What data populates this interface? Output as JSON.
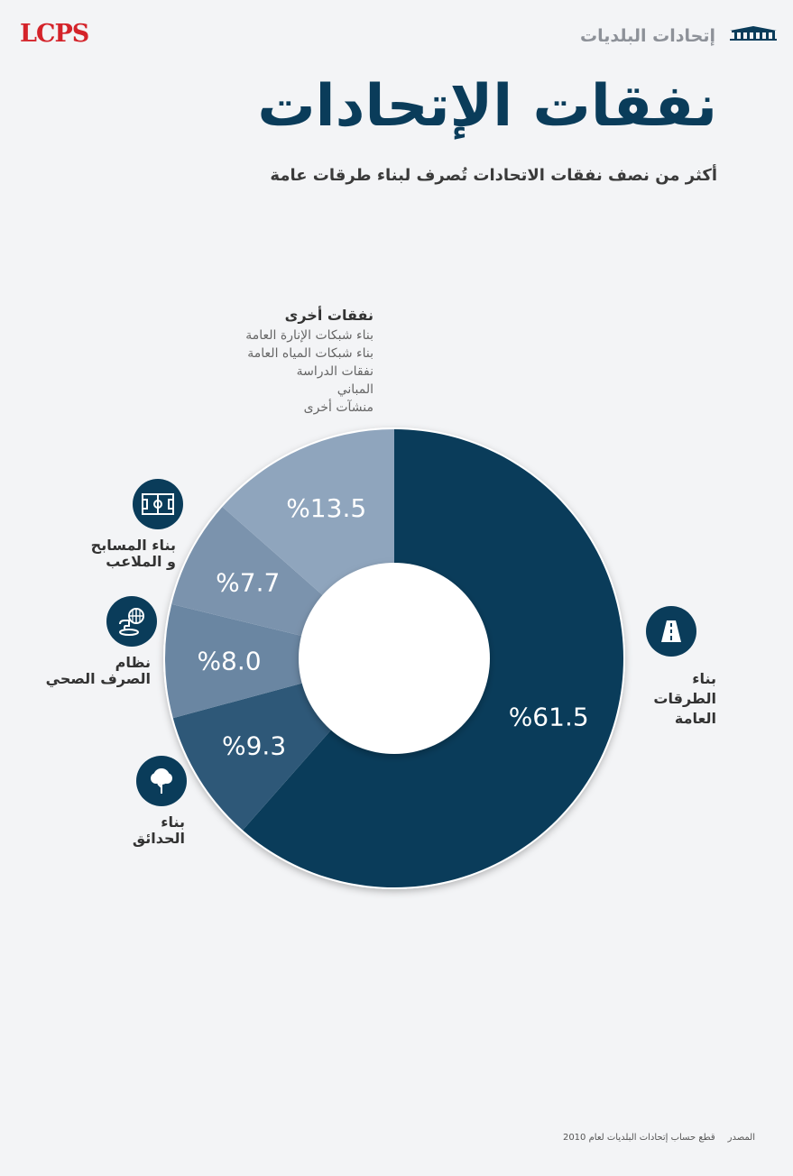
{
  "header": {
    "logo": "LCPS",
    "section": "إتحادات البلديات",
    "title": "نفقات الإتحادات",
    "subtitle": "أكثر من نصف نفقات الاتحادات تُصرف لبناء طرقات عامة"
  },
  "chart_data": {
    "type": "pie",
    "categories": [
      "بناء الطرقات العامة",
      "بناء الحدائق",
      "نظام الصرف الصحي",
      "بناء المسابح و الملاعب",
      "نفقات أخرى"
    ],
    "values": [
      61.5,
      9.3,
      8.0,
      7.7,
      13.5
    ],
    "value_labels": [
      "%61.5",
      "%9.3",
      "%8.0",
      "%7.7",
      "%13.5"
    ],
    "colors": [
      "#0a3c5a",
      "#2e5878",
      "#6a86a2",
      "#7b93ad",
      "#8fa5bd"
    ],
    "donut": true,
    "start_angle": "top, clockwise"
  },
  "labels": {
    "roads": "بناء\nالطرقات\nالعامة",
    "gardens": "بناء\nالحدائق",
    "sewage": "نظام\nالصرف الصحي",
    "pools": "بناء المسابح\nو الملاعب"
  },
  "others": {
    "title": "نفقات أخرى",
    "items": [
      "بناء شبكات الإنارة العامة",
      "بناء شبكات المياه العامة",
      "نفقات الدراسة",
      "المباني",
      "منشآت أخرى"
    ]
  },
  "footer": {
    "source_label": "المصدر",
    "source_text": "قطع حساب إتحادات البلديات لعام 2010"
  },
  "icons": {
    "building": "building-icon",
    "road": "road-icon",
    "field": "field-icon",
    "sewage": "sewage-icon",
    "tree": "tree-icon"
  }
}
